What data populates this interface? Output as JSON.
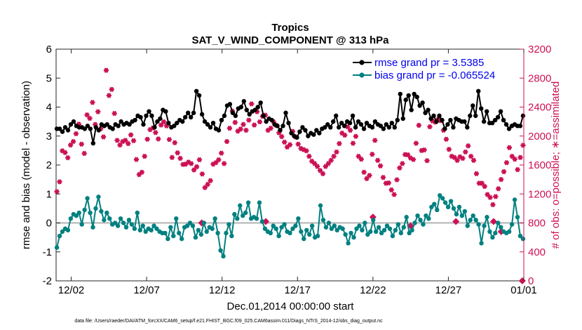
{
  "chart_data": {
    "type": "line",
    "title": "Tropics",
    "subtitle": "SAT_V_WIND_COMPONENT @ 313 hPa",
    "xlabel": "Dec.01,2014 00:00:00 start",
    "ylabel": "rmse and bias (model - observation)",
    "ylabel_right": "# of obs: o=possible; ∗=assimilated",
    "footnote": "data file: /Users/raeder/DAI/ATM_forcXX/CAM6_setup/f.e21.FHIST_BGC.f09_025.CAM6assim.011/Diags_NTrS_2014-12/obs_diag_output.nc",
    "xlim": [
      0,
      31
    ],
    "ylim": [
      -2,
      6
    ],
    "ylim_right": [
      0,
      3200
    ],
    "x_ticks": [
      1,
      6,
      11,
      16,
      21,
      26,
      31
    ],
    "x_tick_labels": [
      "12/02",
      "12/07",
      "12/12",
      "12/17",
      "12/22",
      "12/27",
      "01/01"
    ],
    "y_ticks": [
      "-2",
      "-1",
      "0",
      "1",
      "2",
      "3",
      "4",
      "5",
      "6"
    ],
    "y_ticks_right": [
      "0",
      "400",
      "800",
      "1200",
      "1600",
      "2000",
      "2400",
      "2800",
      "3200"
    ],
    "legend": [
      "rmse grand pr = 3.5385",
      "bias grand pr = -0.065524"
    ],
    "legend_position": "top-right",
    "series": [
      {
        "name": "rmse",
        "color": "#000000",
        "values": [
          3.25,
          3.25,
          3.15,
          3.3,
          3.2,
          3.4,
          3.5,
          3.35,
          3.3,
          3.3,
          3.25,
          3.35,
          3.25,
          2.75,
          3.3,
          3.2,
          3.4,
          3.35,
          3.4,
          3.3,
          3.25,
          3.4,
          3.35,
          3.5,
          3.4,
          3.45,
          3.4,
          3.5,
          3.55,
          3.7,
          3.65,
          3.4,
          3.7,
          3.85,
          3.7,
          3.3,
          3.5,
          3.6,
          3.9,
          3.85,
          3.45,
          3.3,
          3.35,
          3.45,
          3.55,
          3.5,
          3.65,
          3.8,
          3.65,
          3.8,
          4.55,
          4.4,
          3.75,
          3.5,
          3.4,
          3.3,
          3.45,
          3.25,
          3.2,
          3.55,
          3.7,
          4.05,
          4.1,
          3.8,
          3.7,
          3.95,
          4.0,
          4.2,
          3.9,
          3.75,
          3.85,
          3.9,
          4.0,
          4.15,
          3.7,
          3.5,
          3.6,
          3.55,
          3.4,
          3.35,
          3.2,
          3.35,
          3.8,
          3.45,
          3.1,
          3.0,
          2.95,
          3.15,
          3.3,
          3.2,
          3.0,
          3.1,
          3.05,
          3.2,
          3.1,
          3.25,
          3.3,
          3.4,
          3.3,
          3.5,
          3.7,
          3.3,
          3.45,
          3.35,
          3.5,
          3.45,
          3.7,
          3.3,
          3.5,
          3.4,
          3.25,
          3.45,
          3.35,
          3.3,
          3.5,
          3.4,
          3.35,
          3.25,
          3.4,
          3.3,
          3.45,
          3.3,
          3.55,
          4.45,
          3.6,
          4.25,
          4.4,
          3.9,
          4.45,
          4.35,
          4.05,
          4.15,
          3.8,
          3.9,
          3.6,
          3.7,
          3.5,
          3.7,
          3.55,
          3.25,
          3.4,
          3.55,
          3.3,
          3.6,
          3.55,
          3.5,
          3.5,
          3.3,
          3.7,
          4.05,
          3.7,
          4.55,
          3.95,
          3.5,
          3.85,
          3.45,
          3.45,
          3.55,
          3.65,
          3.85,
          3.55,
          3.4,
          3.25,
          3.35,
          3.4,
          3.35,
          3.35,
          3.7
        ]
      },
      {
        "name": "bias",
        "color": "#008080",
        "values": [
          -0.85,
          -0.45,
          -0.3,
          -0.2,
          -0.25,
          0.15,
          0.3,
          0.25,
          0.35,
          -0.05,
          0.45,
          0.85,
          0.35,
          -0.15,
          0.5,
          0.9,
          0.4,
          0.1,
          0.35,
          0.15,
          -0.05,
          0.0,
          -0.1,
          0.15,
          0.0,
          -0.15,
          0.1,
          -0.05,
          -0.2,
          0.35,
          -0.25,
          -0.1,
          -0.3,
          -0.2,
          -0.25,
          -0.1,
          -0.2,
          -0.3,
          -0.35,
          -0.35,
          -0.55,
          -0.15,
          -0.45,
          0.15,
          -0.35,
          -0.55,
          -0.15,
          -0.1,
          0.0,
          -0.1,
          -0.5,
          -0.25,
          -0.4,
          0.0,
          -0.3,
          -0.15,
          -0.2,
          0.15,
          -0.35,
          -0.95,
          -1.15,
          -0.35,
          -0.05,
          -0.45,
          0.3,
          0.15,
          0.6,
          0.25,
          0.35,
          0.7,
          0.15,
          0.2,
          0.15,
          0.7,
          0.05,
          -0.2,
          -0.3,
          -0.35,
          -0.1,
          -0.2,
          -0.45,
          -0.15,
          -0.05,
          -0.3,
          -0.35,
          -0.2,
          -0.1,
          0.15,
          -0.3,
          -0.55,
          -0.25,
          -0.4,
          -0.1,
          -0.5,
          -0.45,
          0.6,
          0.1,
          -0.15,
          0.0,
          -0.2,
          -0.1,
          -0.25,
          -0.15,
          -0.2,
          -0.4,
          -0.7,
          -0.35,
          -0.5,
          -0.2,
          -0.1,
          -0.25,
          0.0,
          -0.4,
          -0.3,
          0.1,
          -0.3,
          -0.15,
          -0.35,
          -0.25,
          -0.1,
          -0.2,
          -0.45,
          -0.25,
          -0.05,
          -0.35,
          -0.15,
          0.2,
          -0.35,
          -0.25,
          0.0,
          0.25,
          0.1,
          -0.05,
          0.25,
          0.15,
          0.55,
          0.65,
          0.45,
          0.95,
          0.85,
          0.7,
          0.55,
          0.75,
          0.5,
          0.3,
          0.55,
          0.25,
          0.4,
          -0.1,
          0.1,
          0.25,
          0.1,
          -0.05,
          -0.7,
          -0.1,
          0.2,
          -0.3,
          -0.5,
          -0.35,
          0.0,
          -0.15,
          -0.3,
          -0.35,
          -0.3,
          -0.05,
          0.8,
          0.2,
          -0.45,
          -0.55
        ]
      },
      {
        "name": "possible (o)",
        "color": "#cc1155",
        "values": [
          1232,
          1368,
          1796,
          1772,
          1700,
          1876,
          1924,
          2032,
          2164,
          1888,
          1760,
          2292,
          2244,
          2464,
          2160,
          2336,
          2100,
          1988,
          2908,
          2560,
          2644,
          2312,
          1940,
          1876,
          1924,
          1940,
          1896,
          2016,
          1936,
          1676,
          1468,
          1500,
          1720,
          1956,
          2088,
          2112,
          2048,
          1960,
          2152,
          2196,
          2140,
          1952,
          1704,
          1908,
          1768,
          1692,
          1608,
          1612,
          1640,
          1620,
          1532,
          1576,
          1672,
          1476,
          1288,
          1332,
          1384,
          1612,
          1632,
          1672,
          1764,
          1620,
          1924,
          2108,
          2344,
          2188,
          2068,
          2096,
          2160,
          2080,
          2220,
          2444,
          2152,
          2336,
          2196,
          2272,
          2288,
          2080,
          2108,
          2196,
          2148,
          2044,
          1992,
          1916,
          1848,
          1880,
          2064,
          1988,
          1888,
          1828,
          1812,
          1796,
          1720,
          1652,
          1620,
          1580,
          1524,
          1480,
          1580,
          1620,
          1664,
          1720,
          1780,
          1896,
          2040,
          2012,
          2128,
          2080,
          1900,
          1996,
          1720,
          1680,
          1500,
          1412,
          1456,
          1748,
          1940,
          1664,
          1588,
          1428,
          1348,
          1352,
          1256,
          1192,
          1396,
          1560,
          1620,
          1744,
          1740,
          1696,
          1676,
          1900,
          2148,
          1800,
          1808,
          1660,
          2128,
          2208,
          2192,
          2228,
          2212,
          2080,
          1956,
          1816,
          1720,
          1704,
          1664,
          1712,
          1692,
          1780,
          1864,
          1720,
          1664,
          1480,
          1348,
          1348,
          1304,
          1192,
          1152,
          1052,
          1164,
          1272,
          1400,
          1508,
          1632,
          1840,
          1720,
          1680,
          1536,
          1704,
          1872
        ]
      }
    ],
    "outlier_points": [
      {
        "x": 9.65,
        "value": 800,
        "series": "possible (o)"
      },
      {
        "x": 13.9,
        "value": 820,
        "series": "possible (o)"
      },
      {
        "x": 21.0,
        "value": 880,
        "series": "possible (o)"
      },
      {
        "x": 23.5,
        "value": 760,
        "series": "possible (o)"
      },
      {
        "x": 26.5,
        "value": 820,
        "series": "possible (o)"
      },
      {
        "x": 29.0,
        "value": 820,
        "series": "possible (o)"
      },
      {
        "x": 29.5,
        "value": 680,
        "series": "possible (o)"
      },
      {
        "x": 30.9,
        "value": 0,
        "series": "possible (o)"
      }
    ]
  }
}
